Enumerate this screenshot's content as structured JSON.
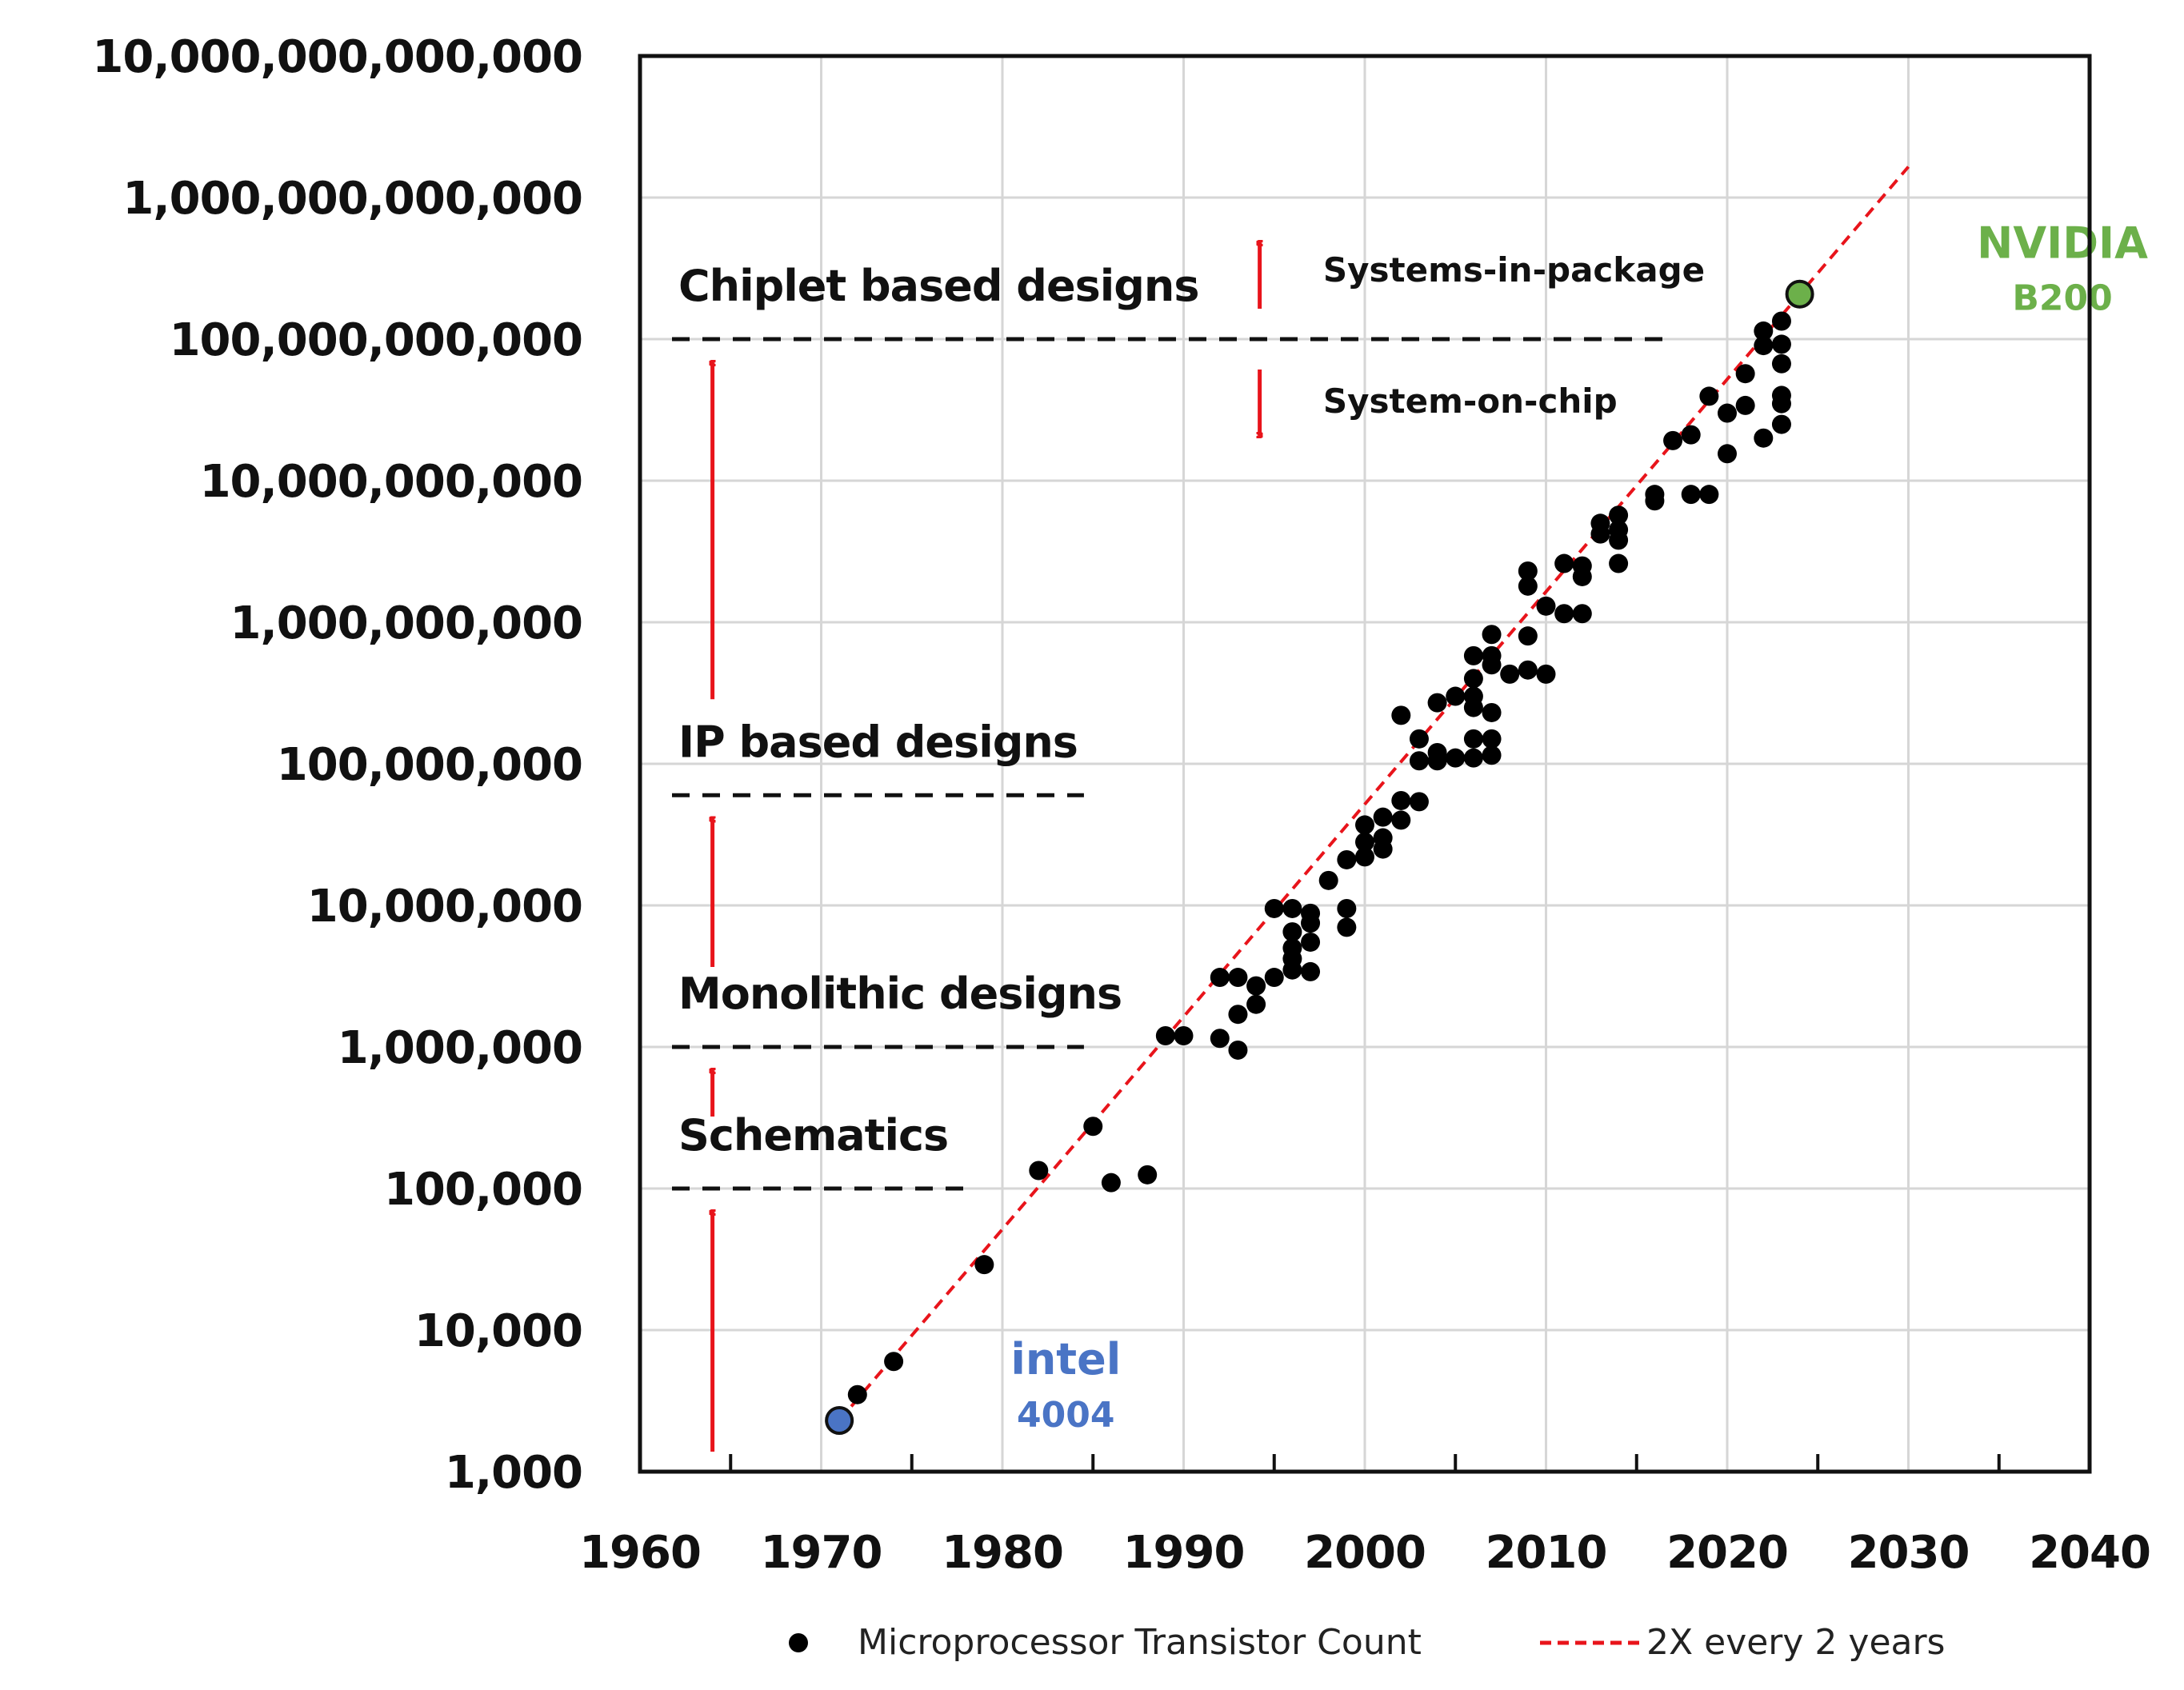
{
  "chart_data": {
    "type": "scatter",
    "xlim": [
      1960,
      2040
    ],
    "ylim": [
      1000,
      10000000000000
    ],
    "yscale": "log",
    "grid": true,
    "x_ticks": [
      "1960",
      "1970",
      "1980",
      "1990",
      "2000",
      "2010",
      "2020",
      "2030",
      "2040"
    ],
    "y_ticks": [
      "1,000",
      "10,000",
      "100,000",
      "1,000,000",
      "10,000,000",
      "100,000,000",
      "1,000,000,000",
      "10,000,000,000",
      "100,000,000,000",
      "1,000,000,000,000",
      "10,000,000,000,000"
    ],
    "legend": {
      "position": "bottom",
      "items": [
        {
          "label": "Microprocessor Transistor Count",
          "marker": "dot",
          "color": "#000000"
        },
        {
          "label": "2X every 2 years",
          "marker": "dashed-line",
          "color": "#e8141b"
        }
      ]
    },
    "series": [
      {
        "name": "Microprocessor Transistor Count",
        "color": "#000000",
        "points": [
          [
            1972,
            3500
          ],
          [
            1974,
            6000
          ],
          [
            1979,
            29000
          ],
          [
            1982,
            134000
          ],
          [
            1985,
            275000
          ],
          [
            1986,
            110000
          ],
          [
            1988,
            125000
          ],
          [
            1989,
            1200000
          ],
          [
            1990,
            1200000
          ],
          [
            1992,
            3100000
          ],
          [
            1992,
            1150000
          ],
          [
            1993,
            3100000
          ],
          [
            1993,
            1700000
          ],
          [
            1993,
            950000
          ],
          [
            1994,
            2700000
          ],
          [
            1994,
            2000000
          ],
          [
            1995,
            3100000
          ],
          [
            1995,
            9500000
          ],
          [
            1996,
            9500000
          ],
          [
            1996,
            6500000
          ],
          [
            1996,
            5000000
          ],
          [
            1996,
            4200000
          ],
          [
            1996,
            3500000
          ],
          [
            1997,
            8800000
          ],
          [
            1997,
            7500000
          ],
          [
            1997,
            5500000
          ],
          [
            1997,
            3400000
          ],
          [
            1998,
            15000000
          ],
          [
            1999,
            21000000
          ],
          [
            1999,
            9500000
          ],
          [
            1999,
            7000000
          ],
          [
            2000,
            37000000
          ],
          [
            2000,
            28000000
          ],
          [
            2000,
            22000000
          ],
          [
            2001,
            42000000
          ],
          [
            2001,
            30000000
          ],
          [
            2001,
            25000000
          ],
          [
            2002,
            220000000
          ],
          [
            2002,
            55000000
          ],
          [
            2002,
            40000000
          ],
          [
            2003,
            150000000
          ],
          [
            2003,
            105000000
          ],
          [
            2003,
            54000000
          ],
          [
            2004,
            270000000
          ],
          [
            2004,
            120000000
          ],
          [
            2004,
            105000000
          ],
          [
            2005,
            300000000
          ],
          [
            2005,
            110000000
          ],
          [
            2006,
            580000000
          ],
          [
            2006,
            400000000
          ],
          [
            2006,
            300000000
          ],
          [
            2006,
            250000000
          ],
          [
            2006,
            150000000
          ],
          [
            2006,
            110000000
          ],
          [
            2007,
            820000000
          ],
          [
            2007,
            580000000
          ],
          [
            2007,
            500000000
          ],
          [
            2007,
            230000000
          ],
          [
            2007,
            150000000
          ],
          [
            2007,
            115000000
          ],
          [
            2008,
            430000000
          ],
          [
            2009,
            2300000000
          ],
          [
            2009,
            1800000000
          ],
          [
            2009,
            800000000
          ],
          [
            2009,
            460000000
          ],
          [
            2010,
            1300000000
          ],
          [
            2010,
            430000000
          ],
          [
            2011,
            2600000000
          ],
          [
            2011,
            1150000000
          ],
          [
            2012,
            2500000000
          ],
          [
            2012,
            2100000000
          ],
          [
            2012,
            1150000000
          ],
          [
            2013,
            5000000000
          ],
          [
            2013,
            4200000000
          ],
          [
            2014,
            5700000000
          ],
          [
            2014,
            4500000000
          ],
          [
            2014,
            3800000000
          ],
          [
            2014,
            2600000000
          ],
          [
            2016,
            8000000000
          ],
          [
            2016,
            7200000000
          ],
          [
            2017,
            19200000000
          ],
          [
            2018,
            21100000000
          ],
          [
            2018,
            8000000000
          ],
          [
            2019,
            39500000000
          ],
          [
            2019,
            8000000000
          ],
          [
            2020,
            30000000000
          ],
          [
            2020,
            15500000000
          ],
          [
            2021,
            57000000000
          ],
          [
            2021,
            34000000000
          ],
          [
            2022,
            114000000000
          ],
          [
            2022,
            90000000000
          ],
          [
            2022,
            20000000000
          ],
          [
            2023,
            134000000000
          ],
          [
            2023,
            92000000000
          ],
          [
            2023,
            67000000000
          ],
          [
            2023,
            40000000000
          ],
          [
            2023,
            35000000000
          ],
          [
            2023,
            25000000000
          ]
        ]
      }
    ],
    "highlights": [
      {
        "x": 1971,
        "y": 2300,
        "label": "intel",
        "sublabel": "4004",
        "color": "#4a74c5"
      },
      {
        "x": 2024,
        "y": 208000000000,
        "label": "NVIDIA",
        "sublabel": "B200",
        "color": "#6cb04a"
      }
    ],
    "trend_line": {
      "name": "2X every 2 years",
      "color": "#e8141b",
      "x": [
        1971,
        2030
      ],
      "y": [
        2300,
        1650000000000
      ]
    },
    "era_labels": [
      {
        "text": "Schematics",
        "boundary_y": 100000,
        "line_to_x": 1978
      },
      {
        "text": "Monolithic designs",
        "boundary_y": 1000000,
        "line_to_x": 1984.5
      },
      {
        "text": "IP based designs",
        "boundary_y": 60000000,
        "line_to_x": 1984.5
      },
      {
        "text": "Chiplet based designs",
        "boundary_y": 100000000000,
        "line_to_x": 2016.5
      }
    ],
    "system_labels": {
      "up": "Systems-in-package",
      "down": "System-on-chip"
    }
  }
}
